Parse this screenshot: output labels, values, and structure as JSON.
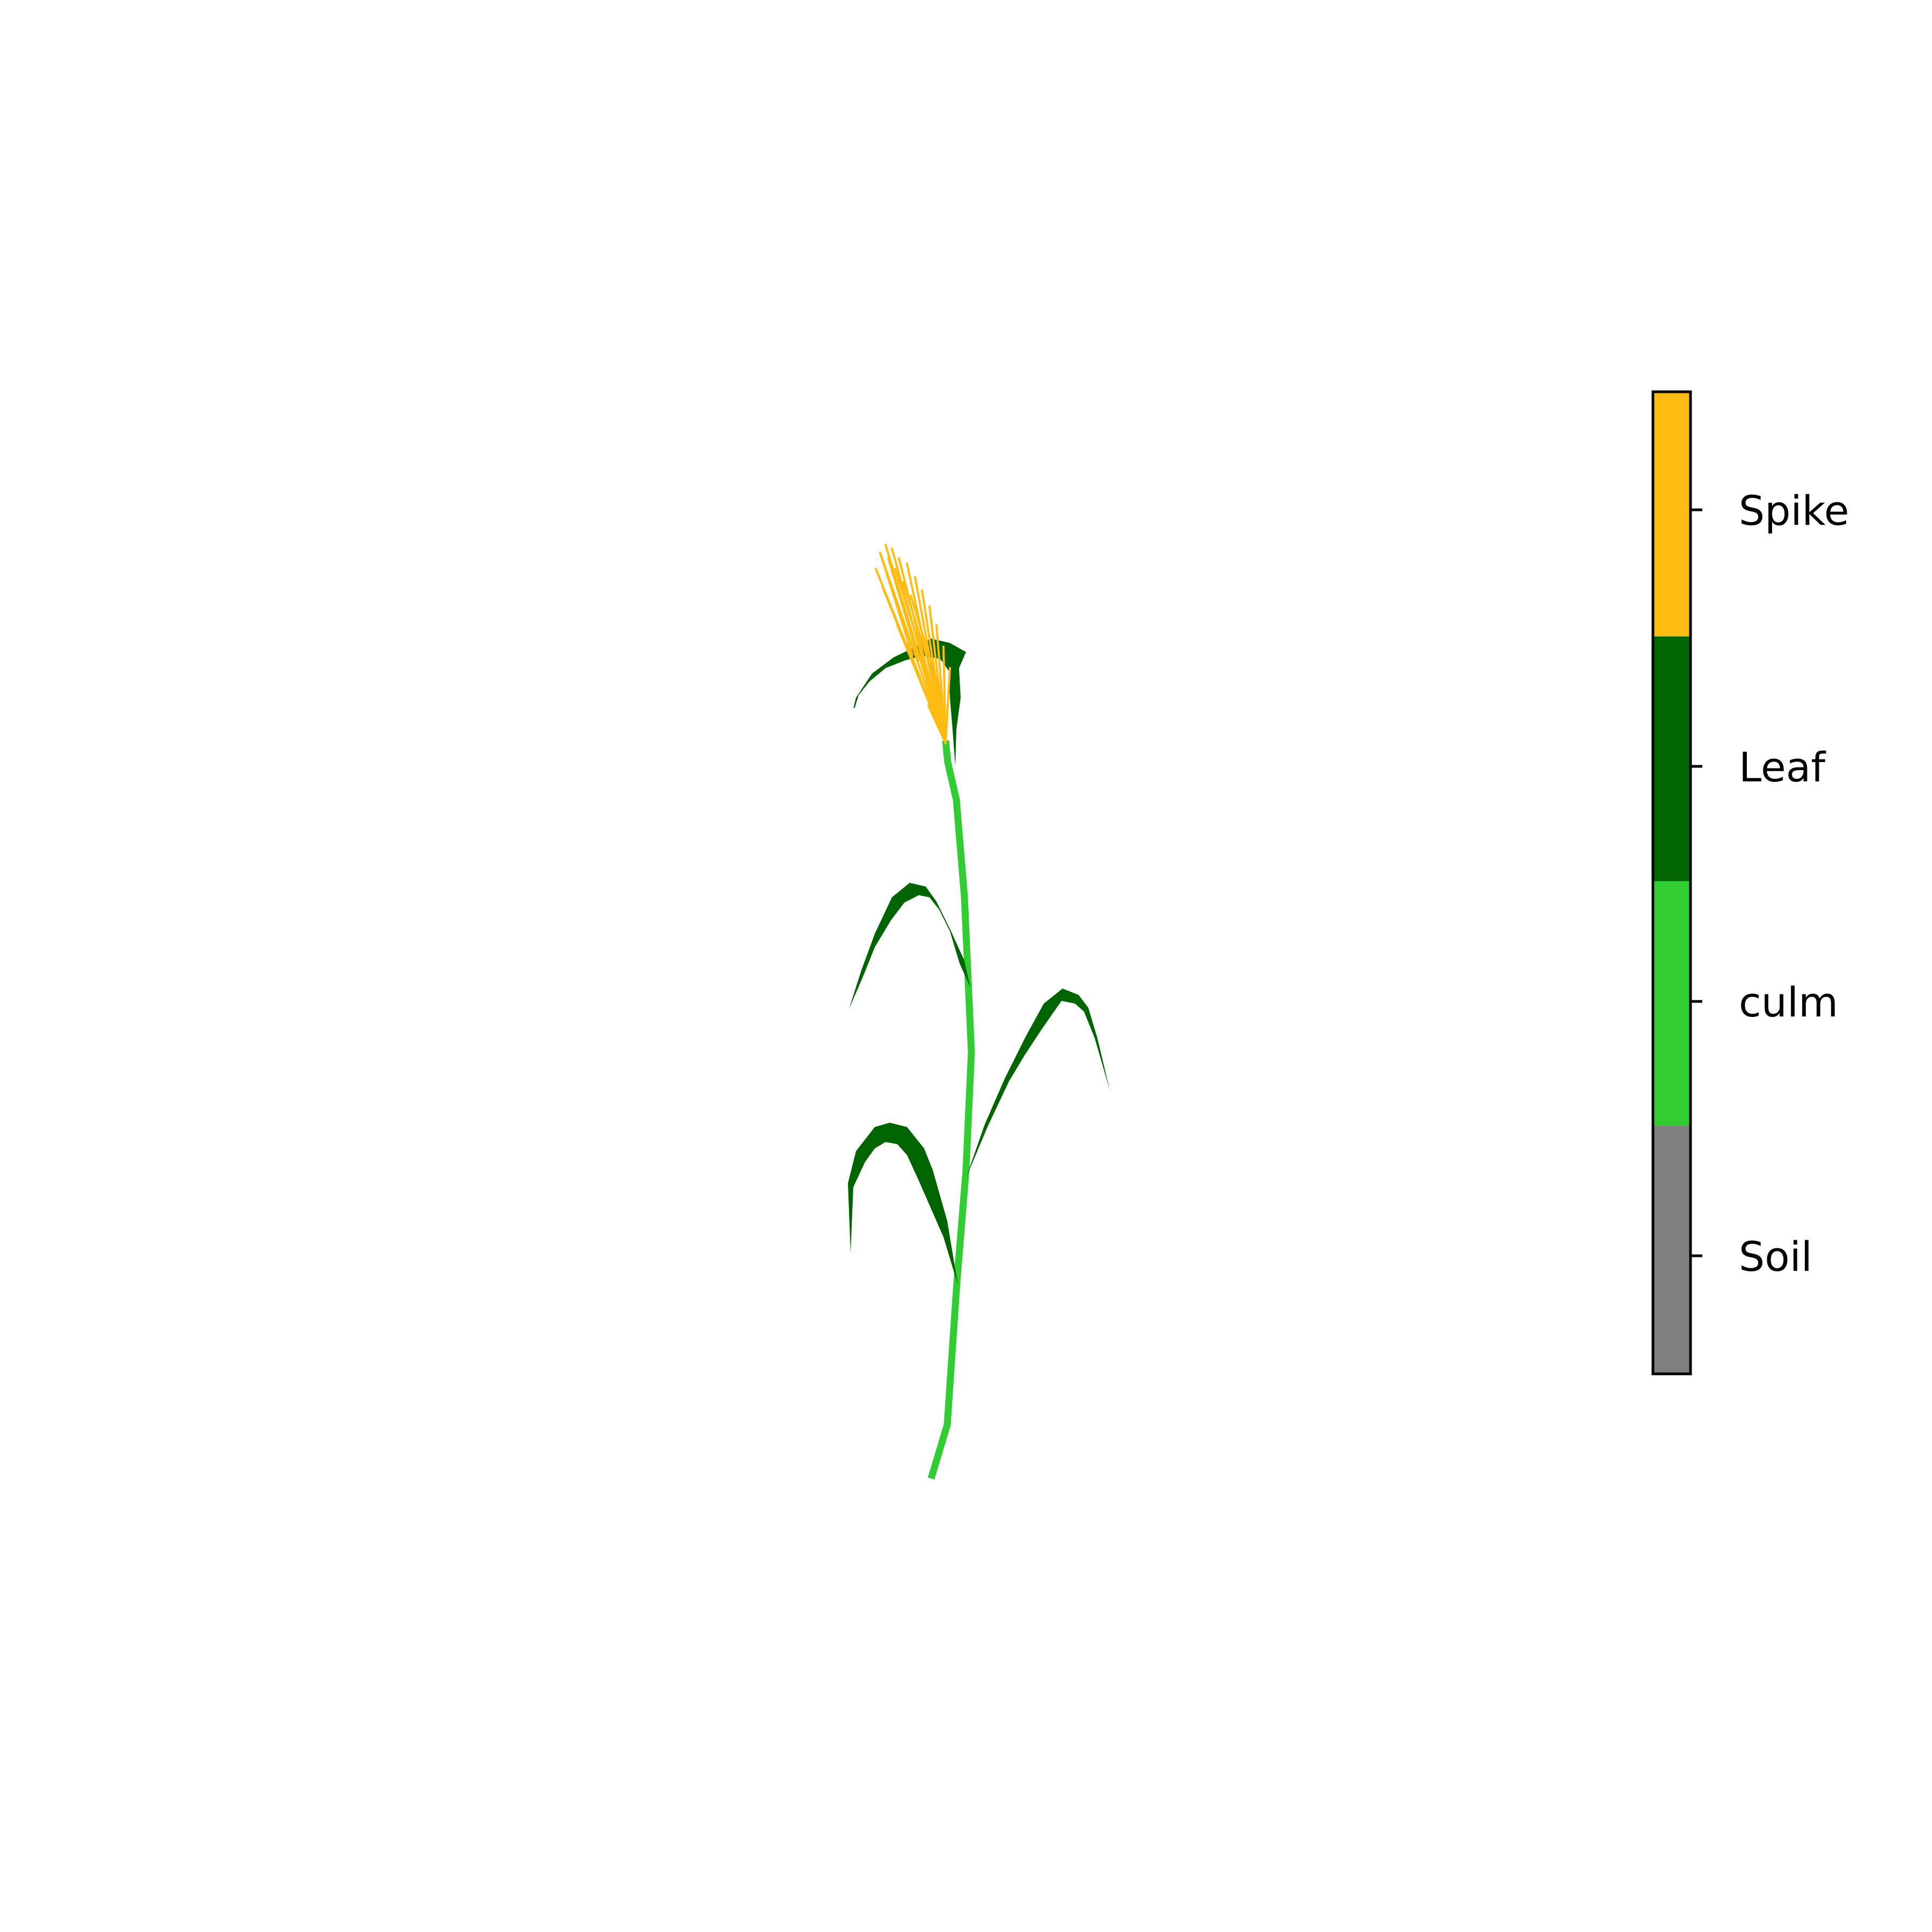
{
  "colors": {
    "spike": "#FFBB11",
    "leaf": "#006400",
    "culm": "#32CD32",
    "soil": "#808080",
    "frame": "#000000",
    "background": "#FFFFFF"
  },
  "colorbar": {
    "labels": [
      "Spike",
      "Leaf",
      "culm",
      "Soil"
    ]
  }
}
